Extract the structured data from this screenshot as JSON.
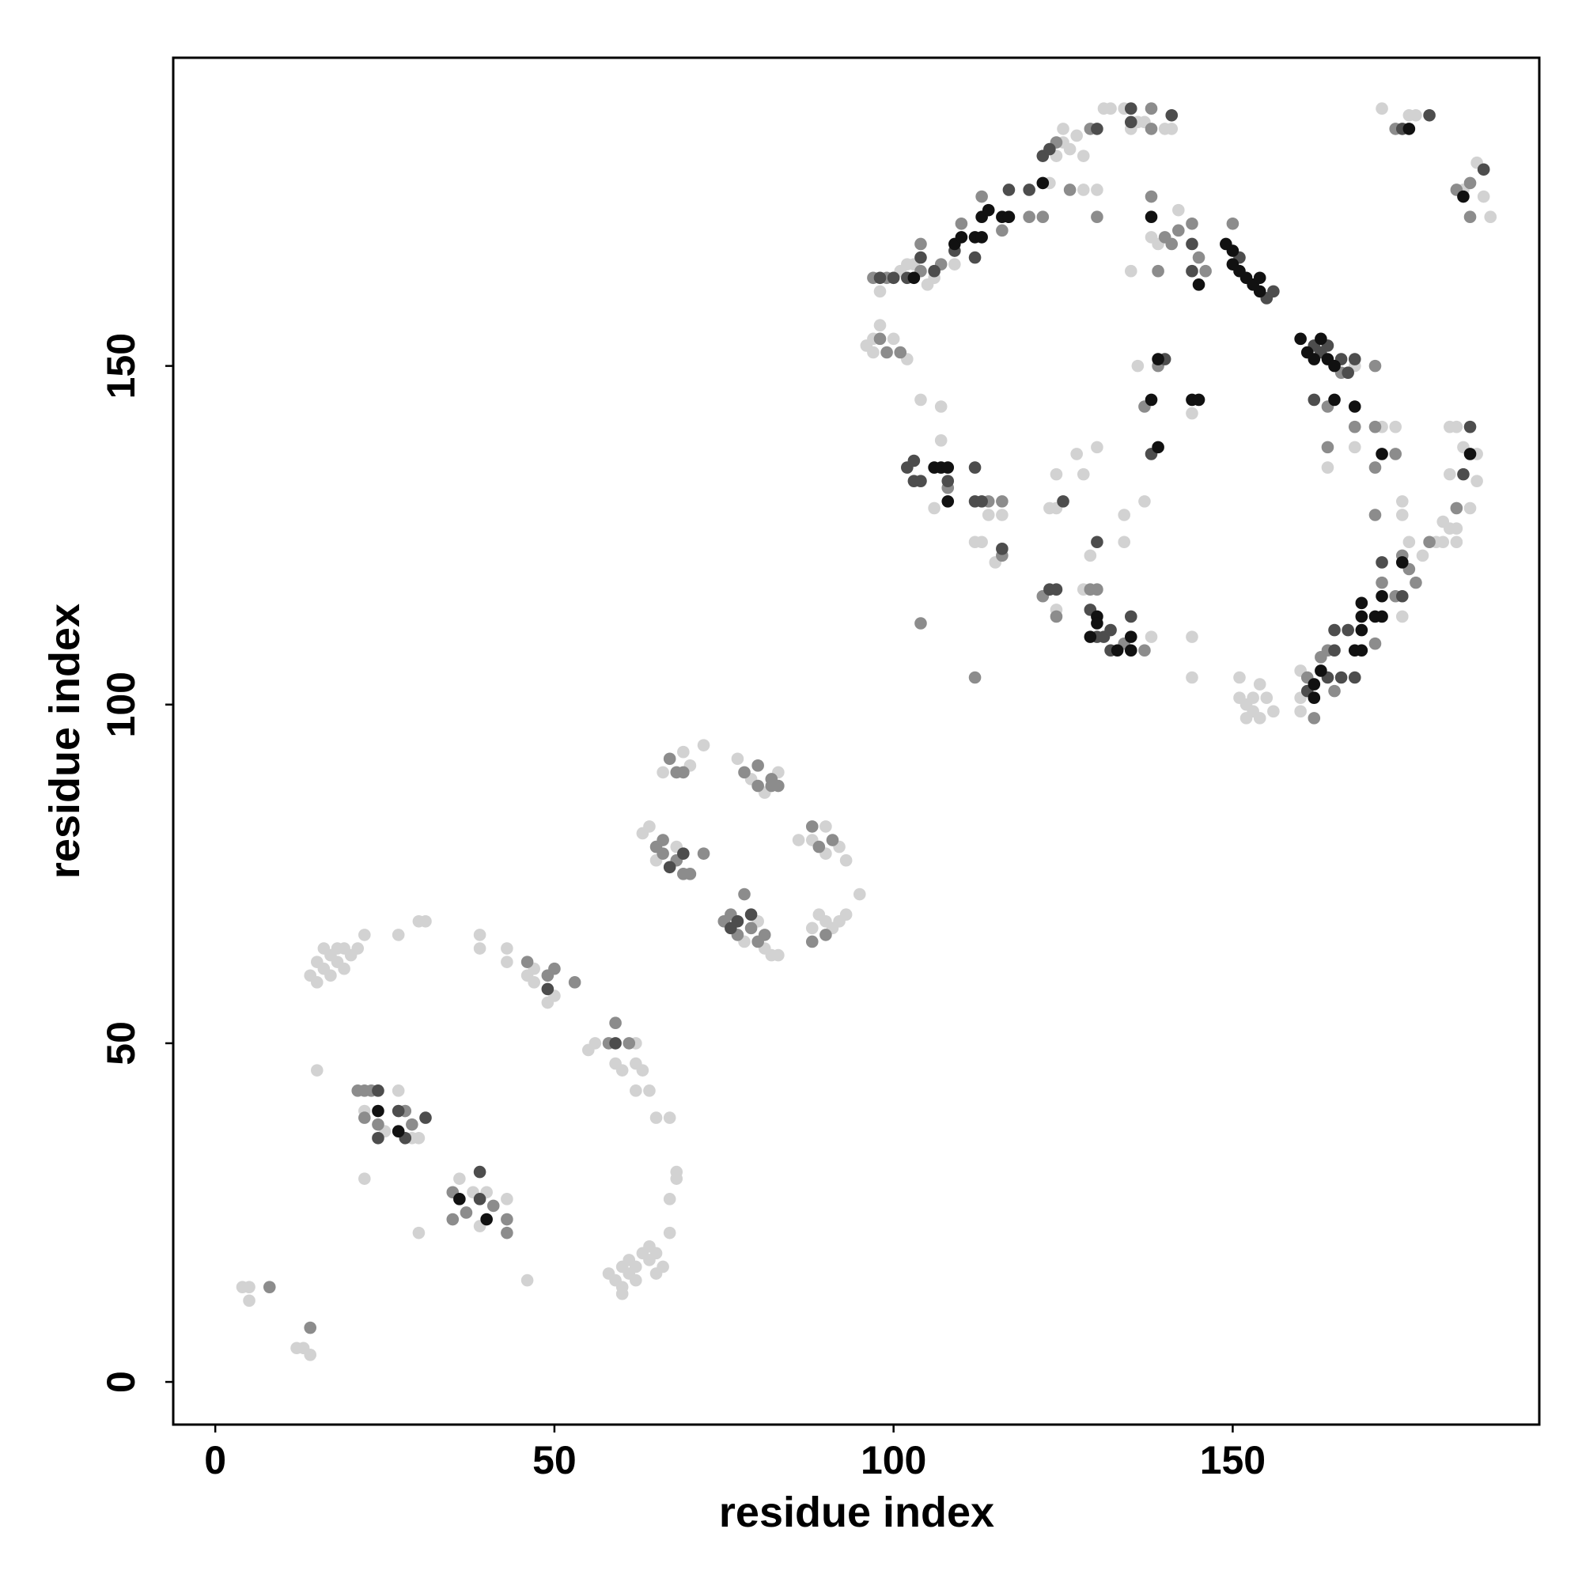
{
  "chart_data": {
    "type": "scatter",
    "xlabel": "residue index",
    "ylabel": "residue index",
    "xlim": [
      -6.2,
      195.2
    ],
    "ylim": [
      -6.3,
      195.5
    ],
    "xticks": [
      0,
      50,
      100,
      150
    ],
    "yticks": [
      0,
      50,
      100,
      150
    ],
    "series": [
      {
        "color": "#d2d2d2",
        "x": [
          4,
          5,
          5,
          12,
          13,
          14,
          15,
          14,
          15,
          15,
          16,
          16,
          17,
          17,
          18,
          18,
          19,
          19,
          20,
          21,
          22,
          22,
          22,
          25,
          27,
          29,
          30,
          27,
          30,
          31,
          30,
          36,
          38,
          39,
          40,
          43,
          39,
          39,
          43,
          43,
          46,
          47,
          47,
          50,
          49,
          46,
          55,
          56,
          59,
          60,
          62,
          62,
          63,
          64,
          62,
          65,
          67,
          68,
          68,
          67,
          67,
          58,
          59,
          60,
          60,
          61,
          61,
          62,
          62,
          63,
          64,
          64,
          65,
          65,
          66,
          60,
          63,
          64,
          65,
          68,
          66,
          69,
          70,
          72,
          78,
          80,
          81,
          82,
          83,
          77,
          79,
          81,
          83,
          86,
          88,
          90,
          90,
          92,
          93,
          88,
          89,
          90,
          91,
          92,
          93,
          95,
          98,
          101,
          102,
          103,
          105,
          106,
          109,
          123,
          124,
          125,
          125,
          126,
          127,
          128,
          128,
          130,
          131,
          132,
          134,
          135,
          136,
          137,
          140,
          141,
          139,
          138,
          142,
          135,
          96,
          97,
          97,
          98,
          100,
          102,
          104,
          136,
          144,
          137,
          130,
          127,
          124,
          128,
          124,
          123,
          168,
          172,
          174,
          175,
          175,
          164,
          168,
          182,
          183,
          184,
          186,
          182,
          186,
          185,
          182,
          181,
          180,
          181,
          178,
          183,
          183,
          176,
          175,
          160,
          160,
          160,
          151,
          151,
          152,
          152,
          153,
          154,
          154,
          155,
          156,
          153,
          107,
          106,
          114,
          116,
          112,
          113,
          115,
          107,
          124,
          128,
          138,
          144,
          144,
          129,
          134,
          134,
          172,
          177,
          176,
          184,
          186,
          187,
          188
        ],
        "values": [
          14,
          14,
          12,
          5,
          5,
          4,
          46,
          60,
          59,
          62,
          61,
          64,
          60,
          63,
          62,
          64,
          61,
          64,
          63,
          64,
          66,
          30,
          40,
          37,
          43,
          36,
          36,
          66,
          68,
          68,
          22,
          30,
          28,
          23,
          28,
          27,
          66,
          64,
          64,
          62,
          60,
          61,
          59,
          57,
          56,
          15,
          49,
          50,
          47,
          46,
          50,
          47,
          46,
          43,
          43,
          39,
          39,
          31,
          30,
          27,
          22,
          16,
          15,
          14,
          17,
          16,
          18,
          17,
          15,
          19,
          18,
          20,
          16,
          19,
          17,
          13,
          81,
          82,
          77,
          79,
          90,
          93,
          91,
          94,
          65,
          68,
          64,
          63,
          63,
          92,
          89,
          87,
          90,
          80,
          80,
          82,
          78,
          79,
          77,
          67,
          69,
          68,
          67,
          68,
          69,
          72,
          161,
          164,
          165,
          165,
          162,
          163,
          165,
          177,
          181,
          183,
          185,
          182,
          184,
          181,
          176,
          176,
          188,
          188,
          188,
          185,
          186,
          186,
          185,
          185,
          168,
          169,
          173,
          164,
          153,
          154,
          152,
          156,
          154,
          151,
          145,
          150,
          143,
          130,
          138,
          137,
          134,
          134,
          129,
          129,
          150,
          141,
          141,
          130,
          128,
          135,
          138,
          141,
          141,
          138,
          137,
          134,
          133,
          129,
          126,
          124,
          124,
          127,
          122,
          126,
          124,
          124,
          113,
          101,
          99,
          105,
          104,
          101,
          98,
          100,
          99,
          103,
          98,
          101,
          99,
          101,
          139,
          129,
          128,
          128,
          124,
          124,
          121,
          144,
          114,
          117,
          110,
          110,
          104,
          122,
          124,
          128,
          188,
          187,
          187,
          176,
          180,
          175,
          172
        ]
      },
      {
        "color": "#8c8c8c",
        "x": [
          8,
          14,
          21,
          22,
          23,
          22,
          24,
          28,
          29,
          35,
          37,
          41,
          43,
          43,
          35,
          46,
          49,
          50,
          53,
          58,
          59,
          61,
          65,
          66,
          66,
          68,
          69,
          70,
          72,
          67,
          68,
          69,
          75,
          76,
          77,
          78,
          79,
          80,
          81,
          78,
          80,
          80,
          82,
          82,
          83,
          88,
          89,
          91,
          88,
          90,
          97,
          99,
          104,
          104,
          107,
          110,
          113,
          116,
          120,
          122,
          124,
          126,
          130,
          129,
          138,
          138,
          138,
          140,
          141,
          142,
          144,
          145,
          146,
          150,
          139,
          98,
          99,
          101,
          139,
          137,
          166,
          171,
          164,
          168,
          171,
          171,
          174,
          171,
          164,
          183,
          179,
          175,
          176,
          177,
          174,
          172,
          171,
          164,
          163,
          165,
          161,
          162,
          108,
          114,
          116,
          116,
          122,
          124,
          129,
          130,
          134,
          137,
          104,
          112,
          174,
          183,
          185,
          185
        ],
        "values": [
          14,
          8,
          43,
          43,
          43,
          39,
          38,
          40,
          38,
          28,
          25,
          26,
          24,
          22,
          24,
          62,
          60,
          61,
          59,
          50,
          53,
          50,
          79,
          80,
          78,
          77,
          75,
          75,
          78,
          92,
          90,
          90,
          68,
          69,
          66,
          72,
          67,
          65,
          66,
          90,
          91,
          88,
          89,
          88,
          88,
          82,
          79,
          80,
          65,
          66,
          163,
          163,
          164,
          168,
          165,
          171,
          175,
          170,
          172,
          172,
          183,
          176,
          172,
          185,
          188,
          185,
          175,
          169,
          168,
          170,
          171,
          166,
          164,
          171,
          164,
          154,
          152,
          152,
          150,
          144,
          149,
          150,
          144,
          141,
          141,
          135,
          137,
          128,
          138,
          129,
          124,
          122,
          120,
          118,
          116,
          118,
          109,
          108,
          107,
          102,
          104,
          98,
          132,
          130,
          130,
          122,
          116,
          113,
          117,
          117,
          109,
          108,
          112,
          104,
          185,
          176,
          177,
          172
        ]
      },
      {
        "color": "#4d4d4d",
        "x": [
          24,
          24,
          27,
          28,
          31,
          39,
          39,
          49,
          59,
          67,
          69,
          76,
          77,
          79,
          98,
          100,
          102,
          104,
          106,
          109,
          112,
          117,
          120,
          122,
          123,
          130,
          135,
          135,
          141,
          144,
          144,
          151,
          155,
          156,
          140,
          138,
          125,
          162,
          163,
          164,
          166,
          167,
          168,
          162,
          185,
          184,
          175,
          172,
          167,
          165,
          165,
          164,
          166,
          168,
          161,
          102,
          103,
          103,
          104,
          108,
          112,
          112,
          113,
          116,
          123,
          124,
          129,
          130,
          131,
          132,
          132,
          135,
          130,
          175,
          179,
          187
        ],
        "values": [
          43,
          36,
          40,
          36,
          39,
          27,
          31,
          58,
          50,
          76,
          78,
          67,
          68,
          69,
          163,
          163,
          163,
          166,
          164,
          167,
          166,
          176,
          176,
          181,
          182,
          185,
          188,
          186,
          187,
          168,
          164,
          166,
          160,
          161,
          151,
          137,
          130,
          153,
          152,
          153,
          151,
          149,
          151,
          145,
          141,
          134,
          116,
          121,
          111,
          111,
          108,
          104,
          104,
          104,
          102,
          135,
          136,
          133,
          133,
          133,
          135,
          130,
          130,
          123,
          117,
          117,
          114,
          110,
          110,
          111,
          108,
          113,
          124,
          185,
          187,
          179
        ]
      },
      {
        "color": "#111111",
        "x": [
          24,
          27,
          36,
          40,
          103,
          109,
          110,
          112,
          113,
          113,
          114,
          116,
          117,
          122,
          138,
          145,
          149,
          150,
          150,
          151,
          152,
          153,
          154,
          154,
          139,
          138,
          144,
          145,
          139,
          160,
          161,
          162,
          163,
          164,
          165,
          165,
          168,
          172,
          185,
          175,
          172,
          171,
          172,
          169,
          169,
          169,
          168,
          169,
          163,
          162,
          162,
          106,
          107,
          108,
          108,
          130,
          130,
          129,
          133,
          135,
          135,
          176,
          184
        ],
        "values": [
          40,
          37,
          27,
          24,
          163,
          168,
          169,
          169,
          169,
          172,
          173,
          172,
          172,
          177,
          172,
          162,
          168,
          167,
          165,
          164,
          163,
          162,
          161,
          163,
          151,
          145,
          145,
          145,
          138,
          154,
          152,
          151,
          154,
          151,
          150,
          145,
          144,
          137,
          137,
          121,
          116,
          113,
          113,
          115,
          113,
          111,
          108,
          108,
          105,
          103,
          101,
          135,
          135,
          135,
          130,
          113,
          112,
          110,
          108,
          110,
          108,
          185,
          175
        ]
      }
    ]
  }
}
